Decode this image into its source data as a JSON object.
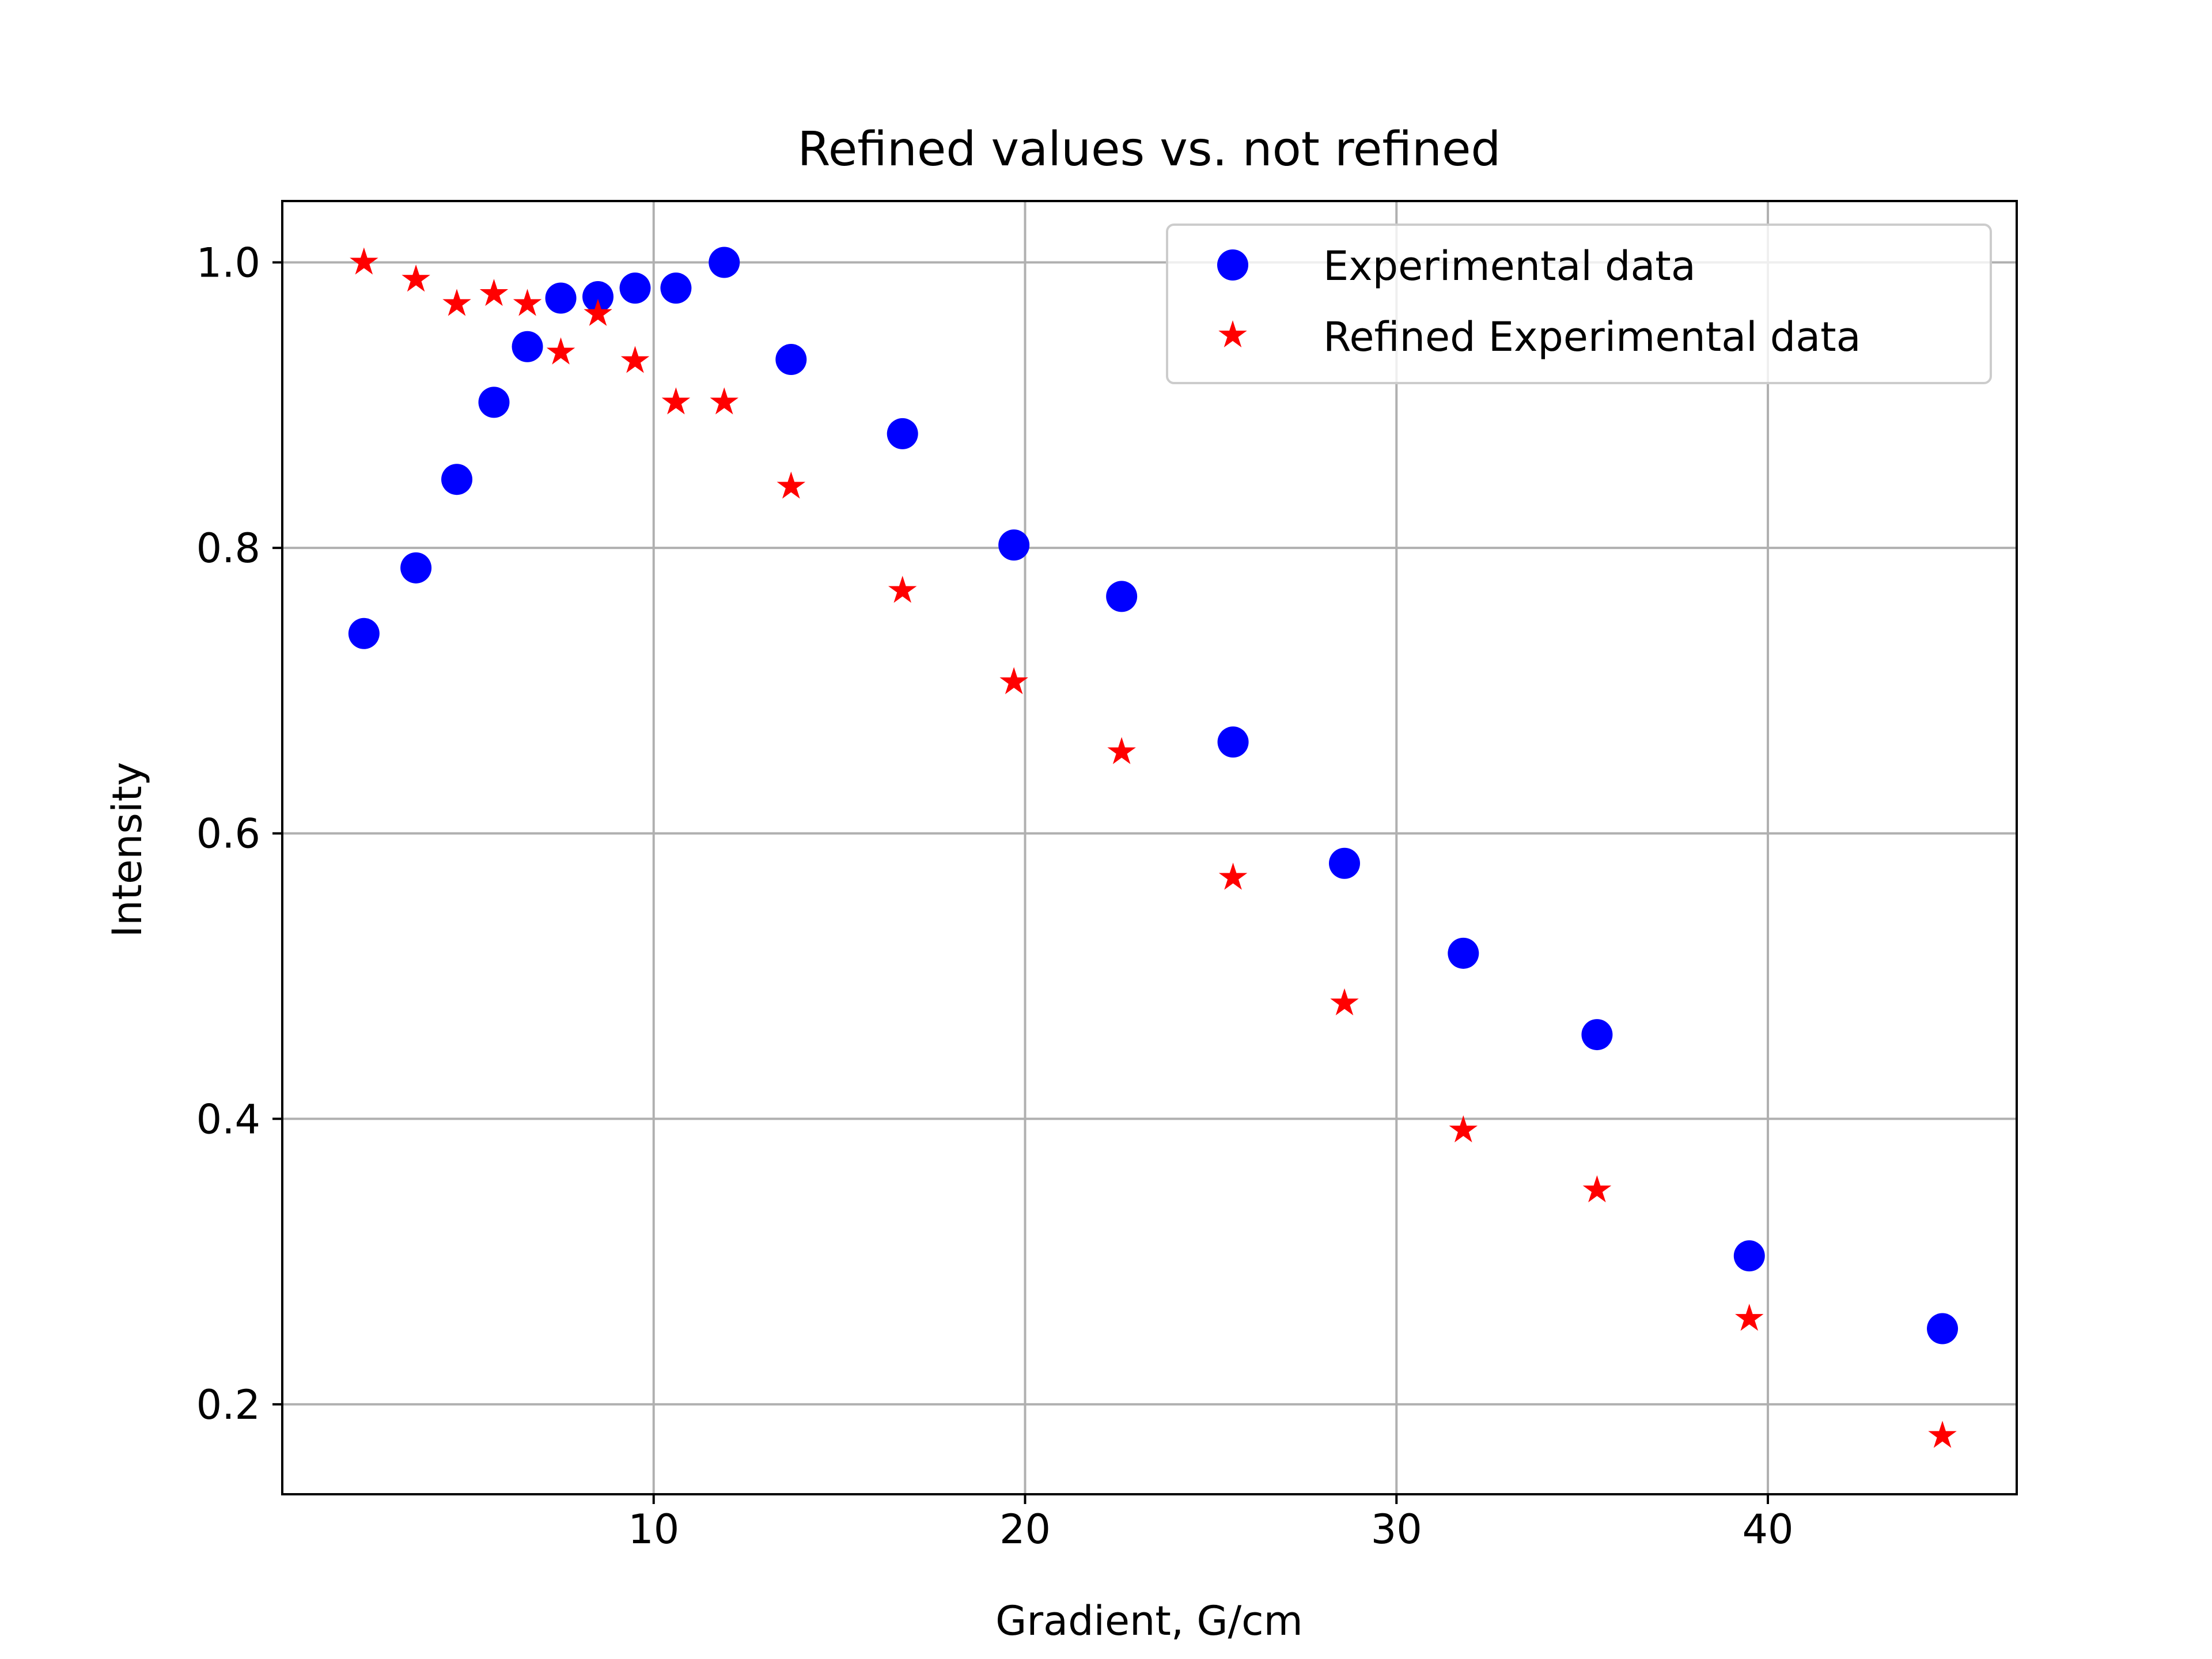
{
  "chart_data": {
    "type": "scatter",
    "title": "Refined values vs. not refined",
    "xlabel": "Gradient, G/cm",
    "ylabel": "Intensity",
    "xlim": [
      0.0,
      46.7
    ],
    "ylim": [
      0.137,
      1.043
    ],
    "xticks": [
      10,
      20,
      30,
      40
    ],
    "yticks": [
      0.2,
      0.4,
      0.6,
      0.8,
      1.0
    ],
    "xtick_labels": [
      "10",
      "20",
      "30",
      "40"
    ],
    "ytick_labels": [
      "0.2",
      "0.4",
      "0.6",
      "0.8",
      "1.0"
    ],
    "grid": true,
    "legend_position": "top-right",
    "series": [
      {
        "name": "Experimental data",
        "marker": "circle",
        "color": "#0000ff",
        "x": [
          2.2,
          3.6,
          4.7,
          5.7,
          6.6,
          7.5,
          8.5,
          9.5,
          10.6,
          11.9,
          13.7,
          16.7,
          19.7,
          22.6,
          25.6,
          28.6,
          31.8,
          35.4,
          39.5,
          44.7
        ],
        "y": [
          0.74,
          0.786,
          0.848,
          0.902,
          0.941,
          0.975,
          0.976,
          0.982,
          0.982,
          1.0,
          0.932,
          0.88,
          0.802,
          0.766,
          0.664,
          0.579,
          0.516,
          0.459,
          0.304,
          0.253
        ]
      },
      {
        "name": "Refined Experimental data",
        "marker": "star",
        "color": "#ff0000",
        "x": [
          2.2,
          3.6,
          4.7,
          5.7,
          6.6,
          7.5,
          8.5,
          9.5,
          10.6,
          11.9,
          13.7,
          16.7,
          19.7,
          22.6,
          25.6,
          28.6,
          31.8,
          35.4,
          39.5,
          44.7
        ],
        "y": [
          1.0,
          0.988,
          0.971,
          0.978,
          0.971,
          0.937,
          0.964,
          0.931,
          0.902,
          0.902,
          0.843,
          0.77,
          0.706,
          0.657,
          0.569,
          0.481,
          0.392,
          0.35,
          0.26,
          0.178
        ]
      }
    ]
  }
}
